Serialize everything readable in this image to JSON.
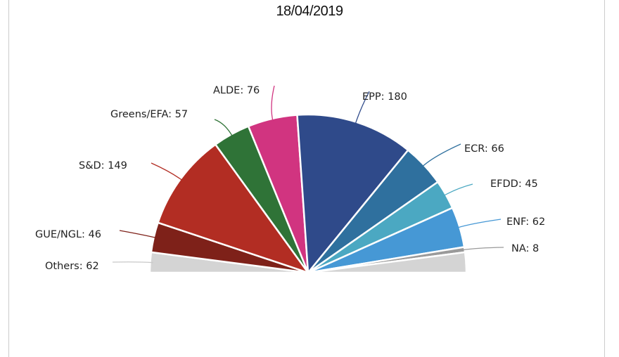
{
  "chart_data": {
    "type": "pie",
    "subtype": "parliament-semicircle",
    "title": "18/04/2019",
    "slices": [
      {
        "name": "Others",
        "value": 62,
        "label": "Others: 62",
        "color": "#d4d4d4"
      },
      {
        "name": "GUE/NGL",
        "value": 46,
        "label": "GUE/NGL: 46",
        "color": "#7e2119"
      },
      {
        "name": "S&D",
        "value": 149,
        "label": "S&D: 149",
        "color": "#b22d23"
      },
      {
        "name": "Greens/EFA",
        "value": 57,
        "label": "Greens/EFA: 57",
        "color": "#2f7337"
      },
      {
        "name": "ALDE",
        "value": 76,
        "label": "ALDE: 76",
        "color": "#d13480"
      },
      {
        "name": "EPP",
        "value": 180,
        "label": "EPP: 180",
        "color": "#2f4a8a"
      },
      {
        "name": "ECR",
        "value": 66,
        "label": "ECR: 66",
        "color": "#2f709e"
      },
      {
        "name": "EFDD",
        "value": 45,
        "label": "EFDD: 45",
        "color": "#4ba8c2"
      },
      {
        "name": "ENF",
        "value": 62,
        "label": "ENF: 62",
        "color": "#4698d5"
      },
      {
        "name": "NA",
        "value": 8,
        "label": "NA: 8",
        "color": "#9a9a9a"
      }
    ]
  }
}
